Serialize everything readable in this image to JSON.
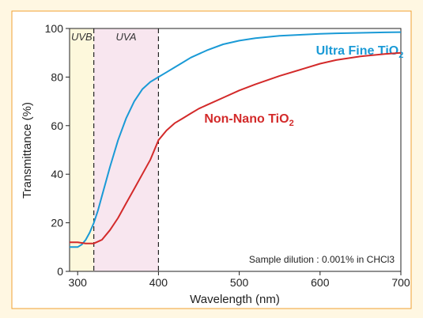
{
  "chart_data": {
    "type": "line",
    "title": "",
    "xlabel": "Wavelength (nm)",
    "ylabel": "Transmittance (%)",
    "xlim": [
      290,
      700
    ],
    "ylim": [
      0,
      100
    ],
    "xticks": [
      300,
      400,
      500,
      600,
      700
    ],
    "yticks": [
      0,
      20,
      40,
      60,
      80,
      100
    ],
    "grid": false,
    "bands": [
      {
        "label": "UVB",
        "range": [
          290,
          320
        ],
        "color": "#fdf8dc"
      },
      {
        "label": "UVA",
        "range": [
          320,
          400
        ],
        "color": "#f8e6ef"
      }
    ],
    "annotation": "Sample dilution : 0.001% in CHCl3",
    "series": [
      {
        "name": "Ultra Fine TiO2",
        "label_main": "Ultra Fine TiO",
        "label_sub": "2",
        "color": "#1a9ad6",
        "x": [
          290,
          300,
          305,
          310,
          315,
          320,
          325,
          330,
          340,
          350,
          360,
          370,
          380,
          390,
          400,
          410,
          420,
          430,
          440,
          450,
          460,
          480,
          500,
          520,
          550,
          580,
          600,
          620,
          650,
          680,
          700
        ],
        "y": [
          10,
          10,
          11,
          13,
          16,
          20,
          25,
          31,
          43,
          54,
          63,
          70,
          75,
          78,
          80,
          82,
          84,
          86,
          88,
          89.5,
          91,
          93.5,
          95,
          96,
          97,
          97.5,
          97.8,
          98,
          98.2,
          98.4,
          98.5
        ]
      },
      {
        "name": "Non-Nano TiO2",
        "label_main": "Non-Nano TiO",
        "label_sub": "2",
        "color": "#d32a2a",
        "x": [
          290,
          300,
          310,
          320,
          330,
          340,
          350,
          360,
          370,
          380,
          390,
          400,
          410,
          420,
          430,
          440,
          450,
          460,
          480,
          500,
          520,
          550,
          580,
          600,
          620,
          650,
          680,
          700
        ],
        "y": [
          12,
          12,
          11.5,
          11.5,
          13,
          17,
          22,
          28,
          34,
          40,
          46,
          54,
          58,
          61,
          63,
          65,
          67,
          68.5,
          71.5,
          74.5,
          77,
          80.5,
          83.5,
          85.5,
          87,
          88.5,
          89.5,
          90
        ]
      }
    ]
  }
}
